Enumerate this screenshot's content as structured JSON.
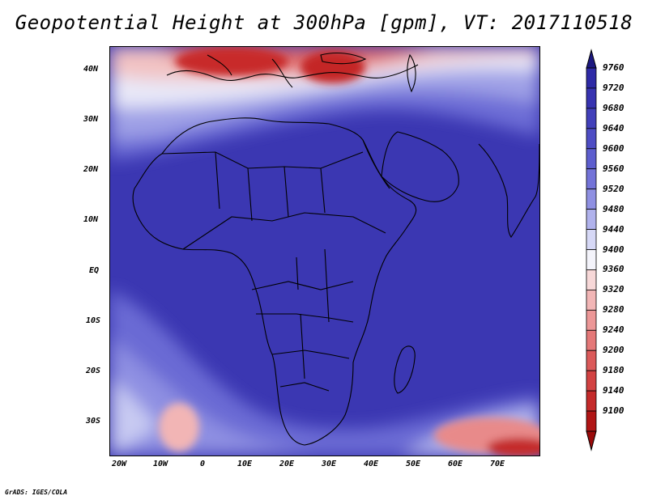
{
  "title": "Geopotential Height at 300hPa [gpm], VT: 2017110518",
  "credit": "GrADS: IGES/COLA",
  "lat_labels": [
    "40N",
    "30N",
    "20N",
    "10N",
    "EQ",
    "10S",
    "20S",
    "30S"
  ],
  "lon_labels": [
    "20W",
    "10W",
    "0",
    "10E",
    "20E",
    "30E",
    "40E",
    "50E",
    "60E",
    "70E"
  ],
  "colorbar": {
    "levels": [
      "9760",
      "9720",
      "9680",
      "9640",
      "9600",
      "9560",
      "9520",
      "9480",
      "9440",
      "9400",
      "9360",
      "9320",
      "9280",
      "9240",
      "9200",
      "9180",
      "9140",
      "9100"
    ],
    "colors": [
      "#2e2aa6",
      "#3733b0",
      "#4240ba",
      "#4e4dc4",
      "#5d5ece",
      "#7373d8",
      "#8f90e2",
      "#b0b2ec",
      "#d6d8f6",
      "#f4f4fb",
      "#f7d8d8",
      "#f2b6b6",
      "#ec9797",
      "#e47878",
      "#db5a5a",
      "#d24242",
      "#c42a2a",
      "#b01515"
    ],
    "top_arrow_color": "#1c1880",
    "bottom_arrow_color": "#9a0a0a"
  }
}
